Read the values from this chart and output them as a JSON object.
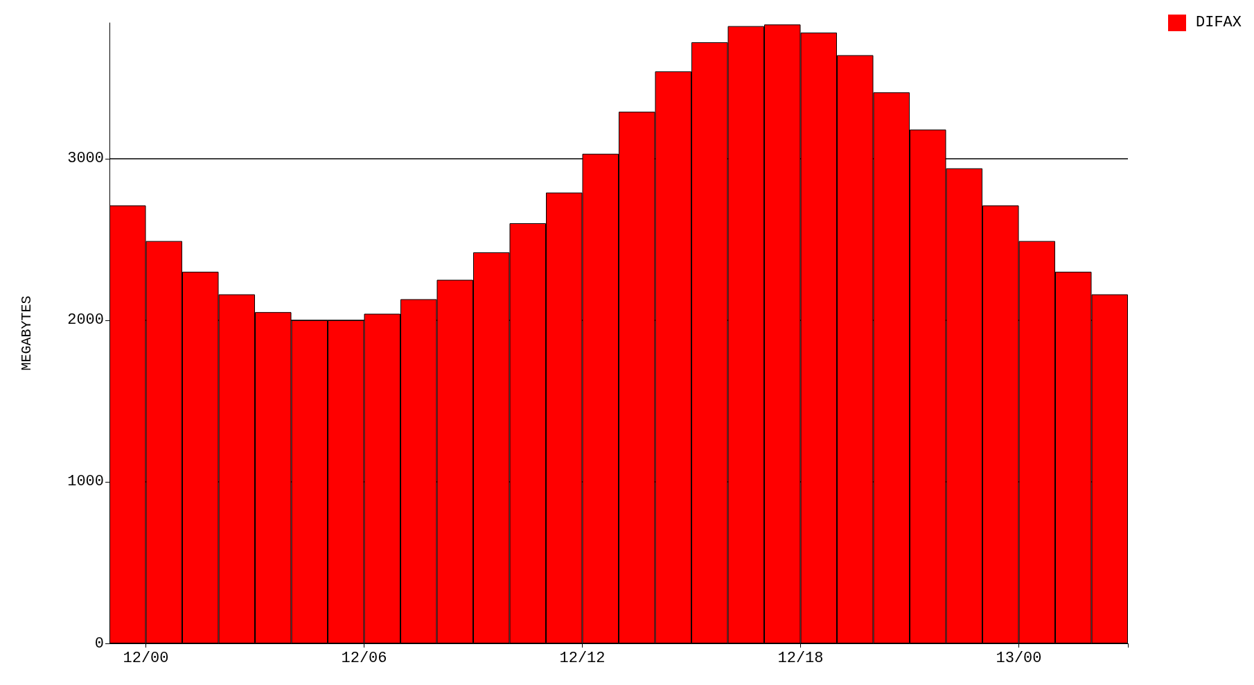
{
  "chart_data": {
    "type": "bar",
    "ylabel": "MEGABYTES",
    "categories": [
      null,
      "12/00",
      null,
      null,
      null,
      null,
      null,
      "12/06",
      null,
      null,
      null,
      null,
      null,
      "12/12",
      null,
      null,
      null,
      null,
      null,
      "12/18",
      null,
      null,
      null,
      null,
      null,
      "13/00",
      null,
      null
    ],
    "series": [
      {
        "name": "DIFAX",
        "color": "#ff0000",
        "values": [
          2710,
          2490,
          2300,
          2160,
          2050,
          2000,
          2000,
          2040,
          2130,
          2250,
          2420,
          2600,
          2790,
          3030,
          3290,
          3540,
          3720,
          3820,
          3830,
          3780,
          3640,
          3410,
          3180,
          2940,
          2710,
          2490,
          2300,
          2160
        ]
      }
    ],
    "ylim": [
      0,
      3840
    ],
    "yticks": [
      0,
      1000,
      2000,
      3000
    ],
    "grid": "y",
    "legend": "top right"
  }
}
